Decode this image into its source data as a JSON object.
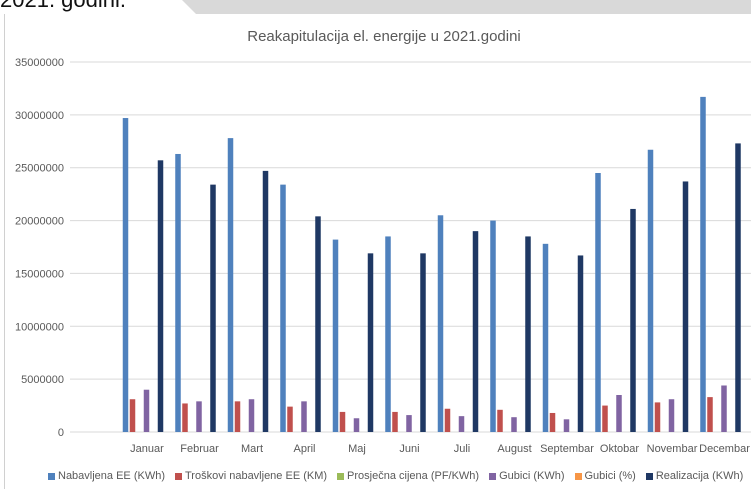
{
  "header_fragment": "2021. godini.",
  "chart_data": {
    "type": "bar",
    "title": "Reakapitulacija el. energije u 2021.godini",
    "categories": [
      "Januar",
      "Februar",
      "Mart",
      "April",
      "Maj",
      "Juni",
      "Juli",
      "August",
      "Septembar",
      "Oktobar",
      "Novembar",
      "Decembar"
    ],
    "ylim": [
      0,
      35000000
    ],
    "yticks": [
      "0",
      "5000000",
      "10000000",
      "15000000",
      "20000000",
      "25000000",
      "30000000",
      "35000000"
    ],
    "grid": true,
    "legend_position": "bottom",
    "series": [
      {
        "name": "Nabavljena EE (KWh)",
        "color": "#4f81bd",
        "values": [
          29700000,
          26300000,
          27800000,
          23400000,
          18200000,
          18500000,
          20500000,
          20000000,
          17800000,
          24500000,
          26700000,
          31700000
        ]
      },
      {
        "name": "Troškovi nabavljene EE (KM)",
        "color": "#c0504d",
        "values": [
          3100000,
          2700000,
          2900000,
          2400000,
          1900000,
          1900000,
          2200000,
          2100000,
          1800000,
          2500000,
          2800000,
          3300000
        ]
      },
      {
        "name": "Prosječna cijena (PF/KWh)",
        "color": "#9bbb59",
        "values": [
          10,
          10,
          10,
          10,
          10,
          10,
          10,
          10,
          10,
          10,
          10,
          10
        ]
      },
      {
        "name": "Gubici (KWh)",
        "color": "#8064a2",
        "values": [
          4000000,
          2900000,
          3100000,
          2900000,
          1300000,
          1600000,
          1500000,
          1400000,
          1200000,
          3500000,
          3100000,
          4400000
        ]
      },
      {
        "name": "Gubici (%)",
        "color": "#f79646",
        "values": [
          14,
          11,
          11,
          12,
          7,
          9,
          7,
          7,
          7,
          14,
          12,
          14
        ]
      },
      {
        "name": "Realizacija (KWh)",
        "color": "#1f3864",
        "values": [
          25700000,
          23400000,
          24700000,
          20400000,
          16900000,
          16900000,
          19000000,
          18500000,
          16700000,
          21100000,
          23700000,
          27300000
        ]
      }
    ]
  }
}
